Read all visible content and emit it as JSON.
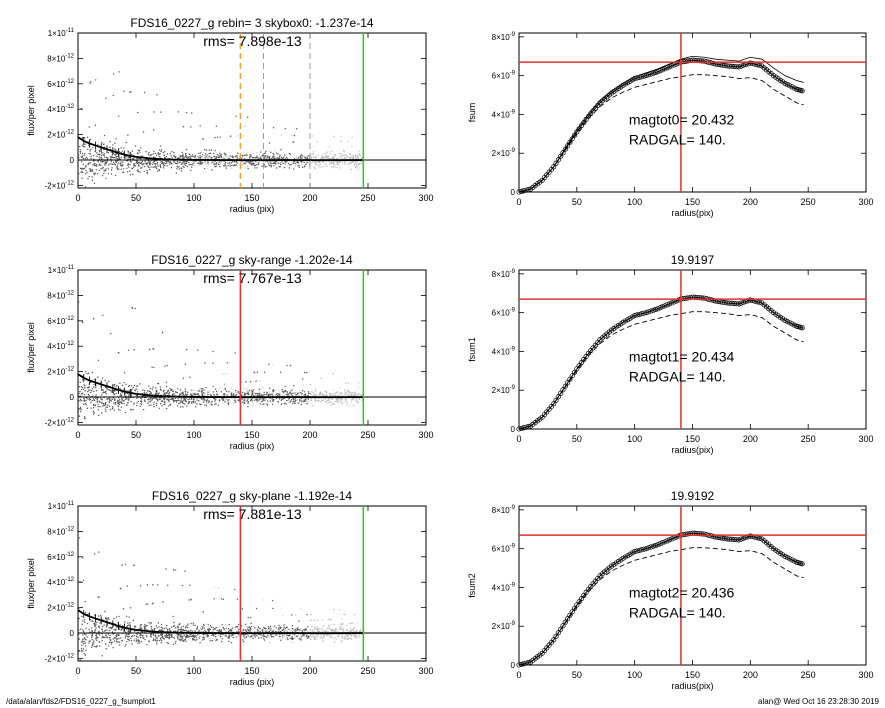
{
  "footer": {
    "left": "/data/alan/fds2/FDS16_0227_g_fsumplot1",
    "right": "alan@  Wed Oct 16 23:28:30 2019"
  },
  "colors": {
    "red": "#e03030",
    "green": "#22cc22",
    "orange": "#f0a030",
    "points": "#9a9a9a"
  },
  "chart_data": [
    {
      "type": "scatter",
      "title": "FDS16_0227_g rebin= 3    skybox0: -1.237e-14",
      "annotation": "rms= 7.898e-13",
      "xlabel": "radius (pix)",
      "ylabel": "flux/per pixel",
      "xlim": [
        0,
        300
      ],
      "ylim": [
        -2.2e-12,
        1e-11
      ],
      "xticks": [
        "0",
        "50",
        "100",
        "150",
        "200",
        "250",
        "300"
      ],
      "yticks": [
        {
          "v": 1e-11,
          "base": "1",
          "exp": "-11"
        },
        {
          "v": 8e-12,
          "base": "8",
          "exp": "-12"
        },
        {
          "v": 6e-12,
          "base": "6",
          "exp": "-12"
        },
        {
          "v": 4e-12,
          "base": "4",
          "exp": "-12"
        },
        {
          "v": 2e-12,
          "base": "2",
          "exp": "-12"
        },
        {
          "v": 0,
          "base": "0",
          "exp": ""
        },
        {
          "v": -2e-12,
          "base": "-2",
          "exp": "-12"
        }
      ],
      "vlines": [
        {
          "x": 140,
          "color": "orange",
          "style": "dashed"
        },
        {
          "x": 160,
          "color": "gray",
          "style": "dashed"
        },
        {
          "x": 200,
          "color": "gray",
          "style": "dashed"
        },
        {
          "x": 246,
          "color": "green",
          "style": "solid"
        }
      ],
      "profile": {
        "x": [
          0,
          5,
          10,
          15,
          20,
          25,
          30,
          35,
          40,
          45,
          50,
          60,
          70,
          80,
          100,
          120,
          150,
          180,
          210,
          246
        ],
        "y": [
          1.8e-12,
          1.5e-12,
          1.3e-12,
          1.15e-12,
          1e-12,
          8.5e-13,
          7e-13,
          5.5e-13,
          4.3e-13,
          3.3e-13,
          2.5e-13,
          1.5e-13,
          8e-14,
          4e-14,
          1e-14,
          0,
          -1e-14,
          0,
          -1e-14,
          0
        ]
      }
    },
    {
      "type": "line",
      "title": "",
      "ylabel": "fsum",
      "xlabel": "radius(pix)",
      "annot1": "magtot0=  20.432",
      "annot2": "RADGAL=    140.",
      "xlim": [
        0,
        300
      ],
      "ylim": [
        0,
        8.2e-09
      ],
      "xticks": [
        "0",
        "50",
        "100",
        "150",
        "200",
        "250",
        "300"
      ],
      "yticks": [
        {
          "v": 8e-09,
          "base": "8",
          "exp": "-9"
        },
        {
          "v": 6e-09,
          "base": "6",
          "exp": "-9"
        },
        {
          "v": 4e-09,
          "base": "4",
          "exp": "-9"
        },
        {
          "v": 2e-09,
          "base": "2",
          "exp": "-9"
        },
        {
          "v": 0,
          "base": "0",
          "exp": ""
        }
      ],
      "vline_x": 140,
      "hline_y": 6.7e-09,
      "x": [
        0,
        10,
        20,
        30,
        40,
        50,
        60,
        70,
        80,
        90,
        100,
        110,
        120,
        130,
        140,
        150,
        160,
        170,
        180,
        190,
        200,
        210,
        220,
        230,
        240,
        246
      ],
      "y": [
        0,
        1.5e-10,
        6e-10,
        1.3e-09,
        2.2e-09,
        3.1e-09,
        3.9e-09,
        4.6e-09,
        5.1e-09,
        5.5e-09,
        5.85e-09,
        6e-09,
        6.2e-09,
        6.45e-09,
        6.7e-09,
        6.8e-09,
        6.75e-09,
        6.6e-09,
        6.5e-09,
        6.45e-09,
        6.65e-09,
        6.5e-09,
        6e-09,
        5.6e-09,
        5.3e-09,
        5.2e-09
      ],
      "lower": [
        0,
        1.5e-10,
        6e-10,
        1.3e-09,
        2.15e-09,
        3e-09,
        3.8e-09,
        4.4e-09,
        4.85e-09,
        5.15e-09,
        5.4e-09,
        5.55e-09,
        5.7e-09,
        5.85e-09,
        5.95e-09,
        6.05e-09,
        6.05e-09,
        6e-09,
        5.95e-09,
        5.85e-09,
        5.9e-09,
        5.75e-09,
        5.3e-09,
        4.95e-09,
        4.6e-09,
        4.5e-09
      ],
      "upper": [
        0,
        1.5e-10,
        6e-10,
        1.3e-09,
        2.25e-09,
        3.2e-09,
        4e-09,
        4.7e-09,
        5.2e-09,
        5.6e-09,
        5.95e-09,
        6.15e-09,
        6.35e-09,
        6.6e-09,
        6.85e-09,
        7e-09,
        6.95e-09,
        6.85e-09,
        6.8e-09,
        6.75e-09,
        6.95e-09,
        6.85e-09,
        6.4e-09,
        6e-09,
        5.75e-09,
        5.65e-09
      ]
    },
    {
      "type": "scatter",
      "title": "FDS16_0227_g sky-range -1.202e-14",
      "annotation": "rms= 7.767e-13",
      "xlabel": "radius (pix)",
      "ylabel": "flux/per pixel",
      "xlim": [
        0,
        300
      ],
      "ylim": [
        -2.2e-12,
        1e-11
      ],
      "xticks": [
        "0",
        "50",
        "100",
        "150",
        "200",
        "250",
        "300"
      ],
      "yticks": [
        {
          "v": 1e-11,
          "base": "1",
          "exp": "-11"
        },
        {
          "v": 8e-12,
          "base": "8",
          "exp": "-12"
        },
        {
          "v": 6e-12,
          "base": "6",
          "exp": "-12"
        },
        {
          "v": 4e-12,
          "base": "4",
          "exp": "-12"
        },
        {
          "v": 2e-12,
          "base": "2",
          "exp": "-12"
        },
        {
          "v": 0,
          "base": "0",
          "exp": ""
        },
        {
          "v": -2e-12,
          "base": "-2",
          "exp": "-12"
        }
      ],
      "vlines": [
        {
          "x": 140,
          "color": "red",
          "style": "solid"
        },
        {
          "x": 246,
          "color": "green",
          "style": "solid"
        }
      ],
      "profile": {
        "x": [
          0,
          5,
          10,
          15,
          20,
          25,
          30,
          35,
          40,
          45,
          50,
          60,
          70,
          80,
          100,
          120,
          150,
          180,
          210,
          246
        ],
        "y": [
          1.8e-12,
          1.5e-12,
          1.3e-12,
          1.15e-12,
          1e-12,
          8.5e-13,
          7e-13,
          5.5e-13,
          4.3e-13,
          3.3e-13,
          2.5e-13,
          1.5e-13,
          8e-14,
          4e-14,
          1e-14,
          0,
          -1e-14,
          0,
          -1e-14,
          0
        ]
      }
    },
    {
      "type": "line",
      "title": "19.9197",
      "ylabel": "fsum1",
      "xlabel": "radius(pix)",
      "annot1": "magtot1=  20.434",
      "annot2": "RADGAL=    140.",
      "xlim": [
        0,
        300
      ],
      "ylim": [
        0,
        8.2e-09
      ],
      "xticks": [
        "0",
        "50",
        "100",
        "150",
        "200",
        "250",
        "300"
      ],
      "yticks": [
        {
          "v": 8e-09,
          "base": "8",
          "exp": "-9"
        },
        {
          "v": 6e-09,
          "base": "6",
          "exp": "-9"
        },
        {
          "v": 4e-09,
          "base": "4",
          "exp": "-9"
        },
        {
          "v": 2e-09,
          "base": "2",
          "exp": "-9"
        },
        {
          "v": 0,
          "base": "0",
          "exp": ""
        }
      ],
      "vline_x": 140,
      "hline_y": 6.7e-09,
      "x": [
        0,
        10,
        20,
        30,
        40,
        50,
        60,
        70,
        80,
        90,
        100,
        110,
        120,
        130,
        140,
        150,
        160,
        170,
        180,
        190,
        200,
        210,
        220,
        230,
        240,
        246
      ],
      "y": [
        0,
        1.5e-10,
        6e-10,
        1.3e-09,
        2.2e-09,
        3.1e-09,
        3.9e-09,
        4.6e-09,
        5.1e-09,
        5.5e-09,
        5.85e-09,
        6e-09,
        6.2e-09,
        6.45e-09,
        6.7e-09,
        6.8e-09,
        6.75e-09,
        6.6e-09,
        6.5e-09,
        6.45e-09,
        6.65e-09,
        6.5e-09,
        6e-09,
        5.6e-09,
        5.3e-09,
        5.2e-09
      ],
      "lower": [
        0,
        1.5e-10,
        6e-10,
        1.3e-09,
        2.15e-09,
        3e-09,
        3.8e-09,
        4.4e-09,
        4.85e-09,
        5.15e-09,
        5.4e-09,
        5.55e-09,
        5.7e-09,
        5.85e-09,
        5.95e-09,
        6.05e-09,
        6.05e-09,
        6e-09,
        5.95e-09,
        5.85e-09,
        5.9e-09,
        5.75e-09,
        5.3e-09,
        4.95e-09,
        4.6e-09,
        4.5e-09
      ]
    },
    {
      "type": "scatter",
      "title": "FDS16_0227_g sky-plane -1.192e-14",
      "annotation": "rms= 7.881e-13",
      "xlabel": "radius (pix)",
      "ylabel": "flux/per pixel",
      "xlim": [
        0,
        300
      ],
      "ylim": [
        -2.2e-12,
        1e-11
      ],
      "xticks": [
        "0",
        "50",
        "100",
        "150",
        "200",
        "250",
        "300"
      ],
      "yticks": [
        {
          "v": 1e-11,
          "base": "1",
          "exp": "-11"
        },
        {
          "v": 8e-12,
          "base": "8",
          "exp": "-12"
        },
        {
          "v": 6e-12,
          "base": "6",
          "exp": "-12"
        },
        {
          "v": 4e-12,
          "base": "4",
          "exp": "-12"
        },
        {
          "v": 2e-12,
          "base": "2",
          "exp": "-12"
        },
        {
          "v": 0,
          "base": "0",
          "exp": ""
        },
        {
          "v": -2e-12,
          "base": "-2",
          "exp": "-12"
        }
      ],
      "vlines": [
        {
          "x": 140,
          "color": "red",
          "style": "solid"
        },
        {
          "x": 246,
          "color": "green",
          "style": "solid"
        }
      ],
      "profile": {
        "x": [
          0,
          5,
          10,
          15,
          20,
          25,
          30,
          35,
          40,
          45,
          50,
          60,
          70,
          80,
          100,
          120,
          150,
          180,
          210,
          246
        ],
        "y": [
          1.8e-12,
          1.5e-12,
          1.3e-12,
          1.15e-12,
          1e-12,
          8.5e-13,
          7e-13,
          5.5e-13,
          4.3e-13,
          3.3e-13,
          2.5e-13,
          1.5e-13,
          8e-14,
          4e-14,
          1e-14,
          0,
          -1e-14,
          0,
          -1e-14,
          0
        ]
      }
    },
    {
      "type": "line",
      "title": "19.9192",
      "ylabel": "fsum2",
      "xlabel": "radius(pix)",
      "annot1": "magtot2=  20.436",
      "annot2": "RADGAL=    140.",
      "xlim": [
        0,
        300
      ],
      "ylim": [
        0,
        8.2e-09
      ],
      "xticks": [
        "0",
        "50",
        "100",
        "150",
        "200",
        "250",
        "300"
      ],
      "yticks": [
        {
          "v": 8e-09,
          "base": "8",
          "exp": "-9"
        },
        {
          "v": 6e-09,
          "base": "6",
          "exp": "-9"
        },
        {
          "v": 4e-09,
          "base": "4",
          "exp": "-9"
        },
        {
          "v": 2e-09,
          "base": "2",
          "exp": "-9"
        },
        {
          "v": 0,
          "base": "0",
          "exp": ""
        }
      ],
      "vline_x": 140,
      "hline_y": 6.7e-09,
      "x": [
        0,
        10,
        20,
        30,
        40,
        50,
        60,
        70,
        80,
        90,
        100,
        110,
        120,
        130,
        140,
        150,
        160,
        170,
        180,
        190,
        200,
        210,
        220,
        230,
        240,
        246
      ],
      "y": [
        0,
        1.5e-10,
        6e-10,
        1.3e-09,
        2.2e-09,
        3.1e-09,
        3.9e-09,
        4.6e-09,
        5.1e-09,
        5.5e-09,
        5.85e-09,
        6e-09,
        6.2e-09,
        6.45e-09,
        6.7e-09,
        6.8e-09,
        6.75e-09,
        6.6e-09,
        6.5e-09,
        6.45e-09,
        6.65e-09,
        6.5e-09,
        6e-09,
        5.6e-09,
        5.3e-09,
        5.2e-09
      ],
      "lower": [
        0,
        1.5e-10,
        6e-10,
        1.3e-09,
        2.15e-09,
        3e-09,
        3.8e-09,
        4.4e-09,
        4.85e-09,
        5.15e-09,
        5.4e-09,
        5.55e-09,
        5.7e-09,
        5.85e-09,
        5.95e-09,
        6.05e-09,
        6.05e-09,
        6e-09,
        5.95e-09,
        5.85e-09,
        5.9e-09,
        5.75e-09,
        5.3e-09,
        4.95e-09,
        4.6e-09,
        4.5e-09
      ]
    }
  ]
}
